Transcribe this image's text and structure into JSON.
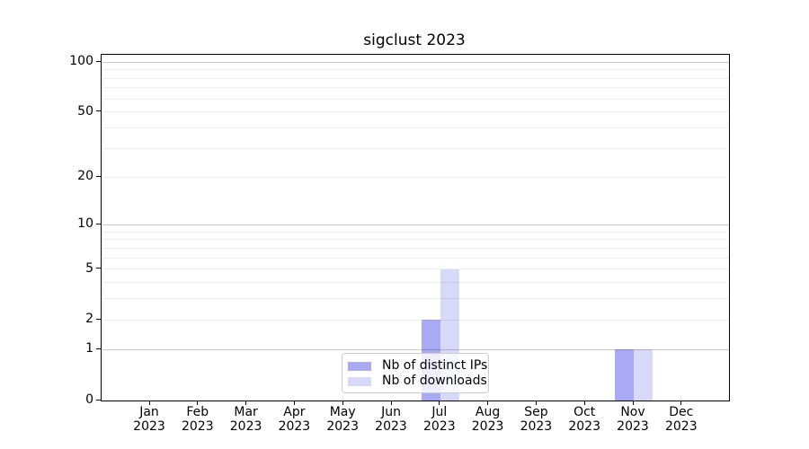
{
  "title": "sigclust 2023",
  "y_axis": {
    "tick_values": [
      0,
      1,
      2,
      5,
      10,
      20,
      50,
      100
    ],
    "tick_labels": [
      "0",
      "1",
      "2",
      "5",
      "10",
      "20",
      "50",
      "100"
    ]
  },
  "x_axis": {
    "months": [
      "Jan",
      "Feb",
      "Mar",
      "Apr",
      "May",
      "Jun",
      "Jul",
      "Aug",
      "Sep",
      "Oct",
      "Nov",
      "Dec"
    ],
    "year": "2023"
  },
  "legend": {
    "items": [
      {
        "label": "Nb of distinct IPs",
        "color": "#a9a9f6"
      },
      {
        "label": "Nb of downloads",
        "color": "#d8d8f8"
      }
    ]
  },
  "chart_data": {
    "type": "bar",
    "title": "sigclust 2023",
    "categories": [
      "Jan 2023",
      "Feb 2023",
      "Mar 2023",
      "Apr 2023",
      "May 2023",
      "Jun 2023",
      "Jul 2023",
      "Aug 2023",
      "Sep 2023",
      "Oct 2023",
      "Nov 2023",
      "Dec 2023"
    ],
    "series": [
      {
        "name": "Nb of distinct IPs",
        "color": "#a9a9f6",
        "values": [
          0,
          0,
          0,
          0,
          0,
          0,
          2,
          0,
          0,
          0,
          1,
          0
        ]
      },
      {
        "name": "Nb of downloads",
        "color": "#d8d8f8",
        "values": [
          0,
          0,
          0,
          0,
          0,
          0,
          5,
          0,
          0,
          0,
          1,
          0
        ]
      }
    ],
    "y_scale": "log10(1+y)",
    "ylim": [
      0,
      110
    ],
    "y_ticks": [
      0,
      1,
      2,
      5,
      10,
      20,
      50,
      100
    ],
    "y_major_grid": [
      1,
      10,
      100
    ],
    "y_minor_grid": [
      2,
      3,
      4,
      5,
      6,
      7,
      8,
      9,
      20,
      30,
      40,
      50,
      60,
      70,
      80,
      90
    ],
    "grid": true,
    "legend_position": "lower center",
    "xlabel": "",
    "ylabel": ""
  }
}
